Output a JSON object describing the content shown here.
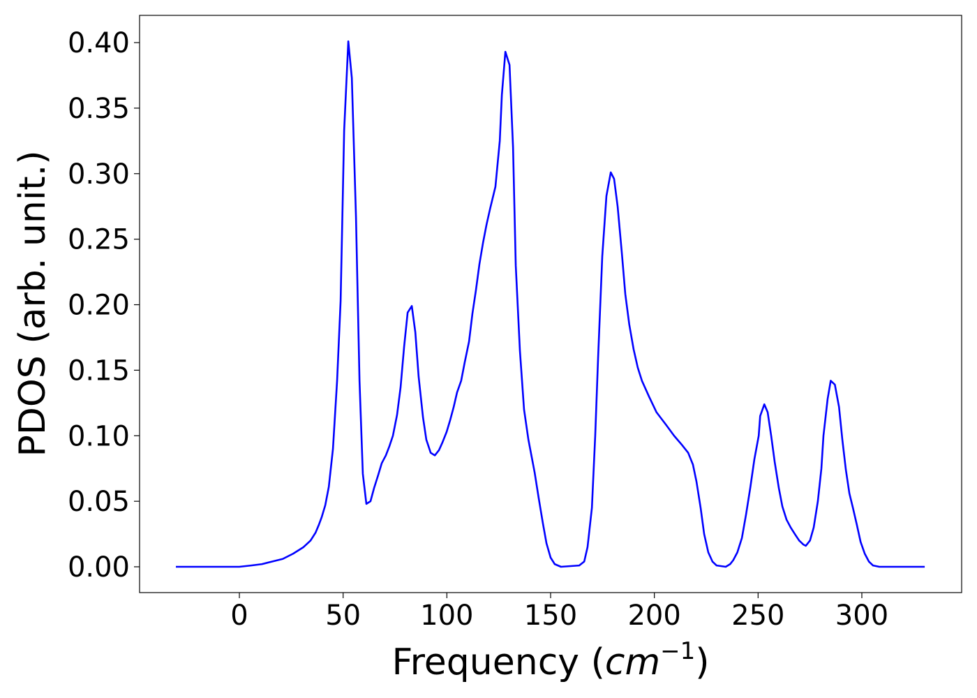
{
  "chart_data": {
    "type": "line",
    "x_label": [
      "Frequency (",
      "cm",
      "−1",
      ")"
    ],
    "y_label": "PDOS (arb. unit.)",
    "xlim": [
      -48.1,
      348.1
    ],
    "ylim": [
      -0.0197,
      0.4208
    ],
    "xticks": [
      0,
      50,
      100,
      150,
      200,
      250,
      300
    ],
    "yticks": [
      {
        "value": 0,
        "label": "0.00"
      },
      0.05,
      {
        "value": 0.1,
        "label": "0.10"
      },
      0.15,
      {
        "value": 0.2,
        "label": "0.20"
      },
      0.25,
      {
        "value": 0.3,
        "label": "0.30"
      },
      0.35,
      {
        "value": 0.4,
        "label": "0.40"
      }
    ],
    "grid": false,
    "series": [
      {
        "name": "PDOS",
        "color": "#0000ff",
        "x": [
          -30.6,
          0,
          5.7,
          10.8,
          15.8,
          20.9,
          25.9,
          30.9,
          34.3,
          36.7,
          38.3,
          39.7,
          41.4,
          43.1,
          45.1,
          47.1,
          48.8,
          50.5,
          52.5,
          54.2,
          56.2,
          57.9,
          59.5,
          61.2,
          63.2,
          64.9,
          66.9,
          68.6,
          70.6,
          72.3,
          74.0,
          76.0,
          77.7,
          79.4,
          81.1,
          83.1,
          84.8,
          86.4,
          88.5,
          90.1,
          92.2,
          94.2,
          96.2,
          97.9,
          99.9,
          101.6,
          103.3,
          104.9,
          106.9,
          108.6,
          110.7,
          112.3,
          114.0,
          115.7,
          117.4,
          119.1,
          120.8,
          123.4,
          125.5,
          126.5,
          128.2,
          130.2,
          131.9,
          133.2,
          135.2,
          137.2,
          139.3,
          142.3,
          144.3,
          146.3,
          148.0,
          150.0,
          152.0,
          155.0,
          163.8,
          166.2,
          167.8,
          169.9,
          171.5,
          172.9,
          174.9,
          176.9,
          179.0,
          180.6,
          182.3,
          184.3,
          186.0,
          187.9,
          190.0,
          192.0,
          194.0,
          197.4,
          201.0,
          205.8,
          209.5,
          213.3,
          216.3,
          218.6,
          220.3,
          222.3,
          224.0,
          226.0,
          228.0,
          230.0,
          234.4,
          236.5,
          238.0,
          240.0,
          242.2,
          244.2,
          246.2,
          248.2,
          250.3,
          251.0,
          253.0,
          254.6,
          256.3,
          258.0,
          260.0,
          261.7,
          263.7,
          265.7,
          267.7,
          269.8,
          271.8,
          273.0,
          275.0,
          276.8,
          278.8,
          280.5,
          281.5,
          283.5,
          285.0,
          287.0,
          289.0,
          290.6,
          292.3,
          294.0,
          295.7,
          297.6,
          299.4,
          301.4,
          303.4,
          305.4,
          308.4,
          330.3
        ],
        "values": [
          0,
          0,
          0.001,
          0.002,
          0.004,
          0.006,
          0.01,
          0.015,
          0.02,
          0.026,
          0.032,
          0.038,
          0.047,
          0.061,
          0.09,
          0.142,
          0.203,
          0.333,
          0.401,
          0.373,
          0.267,
          0.142,
          0.071,
          0.048,
          0.05,
          0.06,
          0.07,
          0.079,
          0.085,
          0.092,
          0.1,
          0.116,
          0.137,
          0.168,
          0.194,
          0.199,
          0.179,
          0.145,
          0.114,
          0.097,
          0.087,
          0.085,
          0.089,
          0.095,
          0.103,
          0.112,
          0.122,
          0.133,
          0.142,
          0.156,
          0.172,
          0.193,
          0.211,
          0.231,
          0.247,
          0.261,
          0.273,
          0.29,
          0.325,
          0.36,
          0.393,
          0.383,
          0.32,
          0.23,
          0.165,
          0.12,
          0.097,
          0.072,
          0.052,
          0.033,
          0.018,
          0.007,
          0.002,
          0,
          0.001,
          0.004,
          0.015,
          0.045,
          0.1,
          0.16,
          0.237,
          0.283,
          0.301,
          0.296,
          0.275,
          0.24,
          0.208,
          0.185,
          0.166,
          0.152,
          0.142,
          0.13,
          0.118,
          0.108,
          0.1,
          0.093,
          0.087,
          0.078,
          0.065,
          0.045,
          0.025,
          0.011,
          0.004,
          0.001,
          0,
          0.002,
          0.005,
          0.011,
          0.022,
          0.04,
          0.06,
          0.082,
          0.1,
          0.115,
          0.124,
          0.118,
          0.1,
          0.08,
          0.06,
          0.046,
          0.036,
          0.03,
          0.025,
          0.02,
          0.017,
          0.016,
          0.02,
          0.03,
          0.05,
          0.075,
          0.1,
          0.128,
          0.142,
          0.139,
          0.122,
          0.097,
          0.074,
          0.056,
          0.045,
          0.032,
          0.019,
          0.01,
          0.004,
          0.001,
          0,
          0
        ]
      }
    ]
  }
}
